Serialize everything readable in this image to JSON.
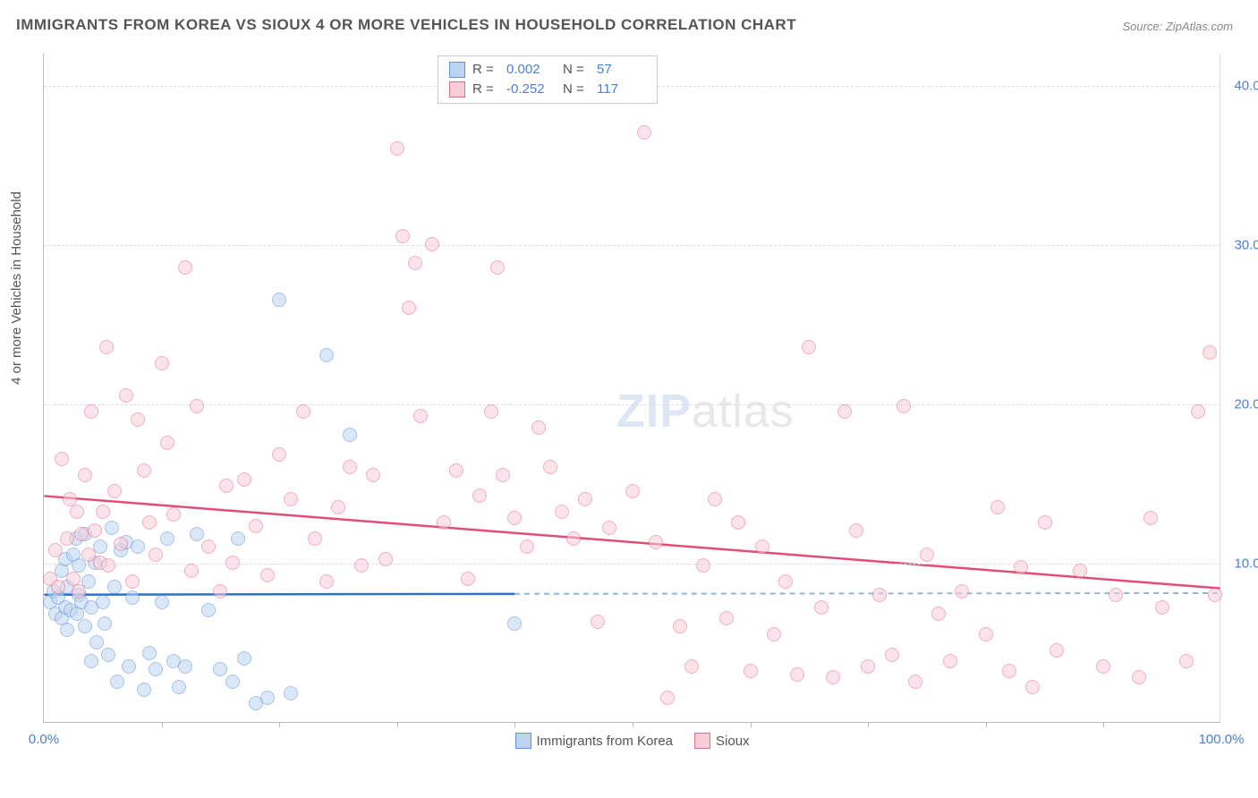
{
  "title": "IMMIGRANTS FROM KOREA VS SIOUX 4 OR MORE VEHICLES IN HOUSEHOLD CORRELATION CHART",
  "source": "Source: ZipAtlas.com",
  "y_axis_label": "4 or more Vehicles in Household",
  "watermark_a": "ZIP",
  "watermark_b": "atlas",
  "chart": {
    "type": "scatter",
    "xlim": [
      0,
      100
    ],
    "ylim": [
      0,
      42
    ],
    "y_ticks": [
      {
        "v": 10,
        "label": "10.0%"
      },
      {
        "v": 20,
        "label": "20.0%"
      },
      {
        "v": 30,
        "label": "30.0%"
      },
      {
        "v": 40,
        "label": "40.0%"
      }
    ],
    "x_ticks_minor": [
      10,
      20,
      30,
      40,
      50,
      60,
      70,
      80,
      90
    ],
    "x_tick_labels": [
      {
        "v": 0,
        "label": "0.0%"
      },
      {
        "v": 100,
        "label": "100.0%"
      }
    ],
    "marker_radius": 8,
    "series": [
      {
        "name": "Immigrants from Korea",
        "fill": "#bcd4f0",
        "stroke": "#5f93d8",
        "fill_opacity": 0.55,
        "R": "0.002",
        "N": "57",
        "trend": {
          "x1": 0,
          "y1": 8.0,
          "x2": 40,
          "y2": 8.05,
          "ext_x": 100,
          "ext_y": 8.1,
          "color": "#2f6fc7",
          "dash_color": "#8fb5d8"
        },
        "points": [
          [
            0.5,
            7.5
          ],
          [
            0.8,
            8.2
          ],
          [
            1,
            6.8
          ],
          [
            1.2,
            7.8
          ],
          [
            1.5,
            9.5
          ],
          [
            1.5,
            6.5
          ],
          [
            1.8,
            7.2
          ],
          [
            1.8,
            10.2
          ],
          [
            2,
            8.5
          ],
          [
            2,
            5.8
          ],
          [
            2.3,
            7.0
          ],
          [
            2.5,
            10.5
          ],
          [
            2.7,
            11.5
          ],
          [
            2.8,
            6.8
          ],
          [
            3,
            8.0
          ],
          [
            3,
            9.8
          ],
          [
            3.2,
            7.5
          ],
          [
            3.5,
            6.0
          ],
          [
            3.5,
            11.8
          ],
          [
            3.8,
            8.8
          ],
          [
            4,
            7.2
          ],
          [
            4,
            3.8
          ],
          [
            4.3,
            10.0
          ],
          [
            4.5,
            5.0
          ],
          [
            4.8,
            11.0
          ],
          [
            5,
            7.5
          ],
          [
            5.2,
            6.2
          ],
          [
            5.5,
            4.2
          ],
          [
            5.8,
            12.2
          ],
          [
            6,
            8.5
          ],
          [
            6.2,
            2.5
          ],
          [
            6.5,
            10.8
          ],
          [
            7,
            11.3
          ],
          [
            7.2,
            3.5
          ],
          [
            7.5,
            7.8
          ],
          [
            8,
            11.0
          ],
          [
            8.5,
            2.0
          ],
          [
            9,
            4.3
          ],
          [
            9.5,
            3.3
          ],
          [
            10,
            7.5
          ],
          [
            10.5,
            11.5
          ],
          [
            11,
            3.8
          ],
          [
            11.5,
            2.2
          ],
          [
            12,
            3.5
          ],
          [
            13,
            11.8
          ],
          [
            14,
            7.0
          ],
          [
            15,
            3.3
          ],
          [
            16,
            2.5
          ],
          [
            16.5,
            11.5
          ],
          [
            17,
            4.0
          ],
          [
            18,
            1.2
          ],
          [
            19,
            1.5
          ],
          [
            20,
            26.5
          ],
          [
            21,
            1.8
          ],
          [
            24,
            23.0
          ],
          [
            26,
            18.0
          ],
          [
            40,
            6.2
          ]
        ]
      },
      {
        "name": "Sioux",
        "fill": "#f7cdd8",
        "stroke": "#e46e8e",
        "fill_opacity": 0.55,
        "R": "-0.252",
        "N": "117",
        "trend": {
          "x1": 0,
          "y1": 14.2,
          "x2": 100,
          "y2": 8.4,
          "color": "#e04e78"
        },
        "points": [
          [
            0.5,
            9.0
          ],
          [
            1,
            10.8
          ],
          [
            1.2,
            8.5
          ],
          [
            1.5,
            16.5
          ],
          [
            2,
            11.5
          ],
          [
            2.2,
            14.0
          ],
          [
            2.5,
            9.0
          ],
          [
            2.8,
            13.2
          ],
          [
            3,
            8.2
          ],
          [
            3.2,
            11.8
          ],
          [
            3.5,
            15.5
          ],
          [
            3.8,
            10.5
          ],
          [
            4,
            19.5
          ],
          [
            4.3,
            12.0
          ],
          [
            4.8,
            10.0
          ],
          [
            5,
            13.2
          ],
          [
            5.3,
            23.5
          ],
          [
            5.5,
            9.8
          ],
          [
            6,
            14.5
          ],
          [
            6.5,
            11.2
          ],
          [
            7,
            20.5
          ],
          [
            7.5,
            8.8
          ],
          [
            8,
            19.0
          ],
          [
            8.5,
            15.8
          ],
          [
            9,
            12.5
          ],
          [
            9.5,
            10.5
          ],
          [
            10,
            22.5
          ],
          [
            10.5,
            17.5
          ],
          [
            11,
            13.0
          ],
          [
            12,
            28.5
          ],
          [
            12.5,
            9.5
          ],
          [
            13,
            19.8
          ],
          [
            14,
            11.0
          ],
          [
            15,
            8.2
          ],
          [
            15.5,
            14.8
          ],
          [
            16,
            10.0
          ],
          [
            17,
            15.2
          ],
          [
            18,
            12.3
          ],
          [
            19,
            9.2
          ],
          [
            20,
            16.8
          ],
          [
            21,
            14.0
          ],
          [
            22,
            19.5
          ],
          [
            23,
            11.5
          ],
          [
            24,
            8.8
          ],
          [
            25,
            13.5
          ],
          [
            26,
            16.0
          ],
          [
            27,
            9.8
          ],
          [
            28,
            15.5
          ],
          [
            29,
            10.2
          ],
          [
            30,
            36.0
          ],
          [
            30.5,
            30.5
          ],
          [
            31,
            26.0
          ],
          [
            31.5,
            28.8
          ],
          [
            32,
            19.2
          ],
          [
            33,
            30.0
          ],
          [
            34,
            12.5
          ],
          [
            35,
            15.8
          ],
          [
            36,
            9.0
          ],
          [
            37,
            14.2
          ],
          [
            38,
            19.5
          ],
          [
            38.5,
            28.5
          ],
          [
            39,
            15.5
          ],
          [
            40,
            12.8
          ],
          [
            41,
            11.0
          ],
          [
            42,
            18.5
          ],
          [
            43,
            16.0
          ],
          [
            44,
            13.2
          ],
          [
            45,
            11.5
          ],
          [
            46,
            14.0
          ],
          [
            47,
            6.3
          ],
          [
            48,
            12.2
          ],
          [
            50,
            14.5
          ],
          [
            51,
            37.0
          ],
          [
            52,
            11.3
          ],
          [
            53,
            1.5
          ],
          [
            54,
            6.0
          ],
          [
            55,
            3.5
          ],
          [
            56,
            9.8
          ],
          [
            57,
            14.0
          ],
          [
            58,
            6.5
          ],
          [
            59,
            12.5
          ],
          [
            60,
            3.2
          ],
          [
            61,
            11.0
          ],
          [
            62,
            5.5
          ],
          [
            63,
            8.8
          ],
          [
            64,
            3.0
          ],
          [
            65,
            23.5
          ],
          [
            66,
            7.2
          ],
          [
            67,
            2.8
          ],
          [
            68,
            19.5
          ],
          [
            69,
            12.0
          ],
          [
            70,
            3.5
          ],
          [
            71,
            8.0
          ],
          [
            72,
            4.2
          ],
          [
            73,
            19.8
          ],
          [
            74,
            2.5
          ],
          [
            75,
            10.5
          ],
          [
            76,
            6.8
          ],
          [
            77,
            3.8
          ],
          [
            78,
            8.2
          ],
          [
            80,
            5.5
          ],
          [
            81,
            13.5
          ],
          [
            82,
            3.2
          ],
          [
            83,
            9.7
          ],
          [
            84,
            2.2
          ],
          [
            85,
            12.5
          ],
          [
            86,
            4.5
          ],
          [
            88,
            9.5
          ],
          [
            90,
            3.5
          ],
          [
            91,
            8.0
          ],
          [
            93,
            2.8
          ],
          [
            94,
            12.8
          ],
          [
            95,
            7.2
          ],
          [
            97,
            3.8
          ],
          [
            98,
            19.5
          ],
          [
            99,
            23.2
          ],
          [
            99.5,
            8.0
          ]
        ]
      }
    ]
  },
  "legend_top": {
    "r_label": "R  =",
    "n_label": "N  ="
  }
}
